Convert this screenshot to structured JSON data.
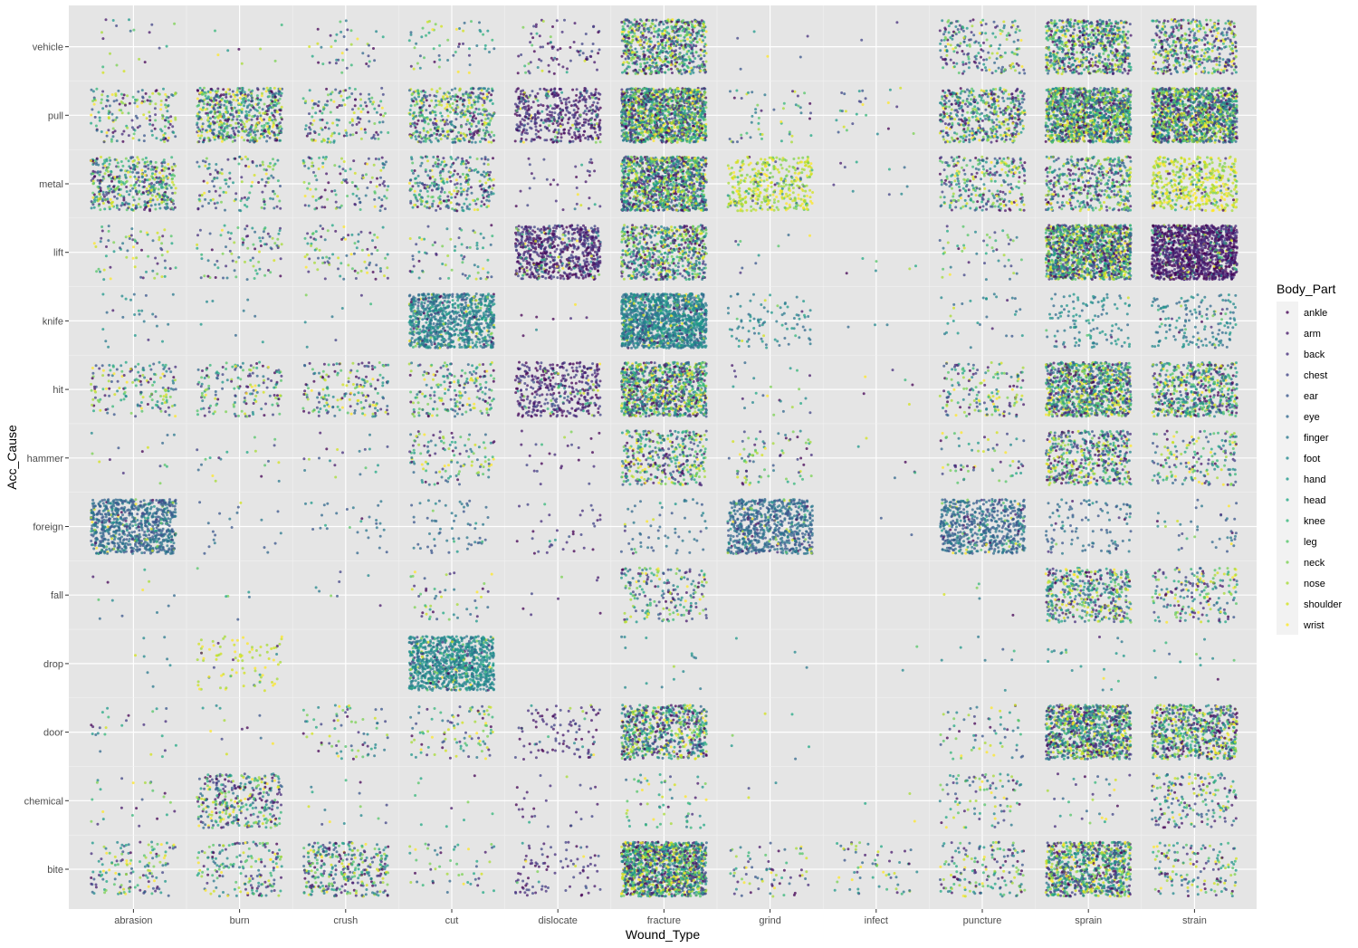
{
  "chart_data": {
    "type": "scatter",
    "subtype": "jitter",
    "title": "",
    "xlabel": "Wound_Type",
    "ylabel": "Acc_Cause",
    "x_categories": [
      "abrasion",
      "burn",
      "crush",
      "cut",
      "dislocate",
      "fracture",
      "grind",
      "infect",
      "puncture",
      "sprain",
      "strain"
    ],
    "y_categories": [
      "bite",
      "chemical",
      "door",
      "drop",
      "fall",
      "foreign",
      "hammer",
      "hit",
      "knife",
      "lift",
      "metal",
      "pull",
      "vehicle"
    ],
    "grid": true,
    "background": "#e5e5e5",
    "legend": {
      "title": "Body_Part",
      "position": "right",
      "entries": [
        "ankle",
        "arm",
        "back",
        "chest",
        "ear",
        "eye",
        "finger",
        "foot",
        "hand",
        "head",
        "knee",
        "leg",
        "neck",
        "nose",
        "shoulder",
        "wrist"
      ],
      "colors": [
        "#440154",
        "#481a6c",
        "#472f7d",
        "#414487",
        "#39568c",
        "#31688e",
        "#2a788e",
        "#23888e",
        "#1f988b",
        "#22a884",
        "#35b779",
        "#54c568",
        "#7ad151",
        "#a5db36",
        "#d2e21b",
        "#fde725"
      ]
    },
    "cell_counts_approx": {
      "vehicle": {
        "abrasion": 20,
        "burn": 8,
        "crush": 40,
        "cut": 55,
        "dislocate": 80,
        "fracture": 700,
        "grind": 6,
        "infect": 2,
        "puncture": 200,
        "sprain": 700,
        "strain": 450
      },
      "pull": {
        "abrasion": 180,
        "burn": 600,
        "crush": 150,
        "cut": 450,
        "dislocate": 450,
        "fracture": 1400,
        "grind": 50,
        "infect": 25,
        "puncture": 500,
        "sprain": 1400,
        "strain": 1400
      },
      "metal": {
        "abrasion": 450,
        "burn": 130,
        "crush": 120,
        "cut": 300,
        "dislocate": 35,
        "fracture": 1200,
        "grind": 400,
        "infect": 10,
        "puncture": 300,
        "sprain": 450,
        "strain": 500
      },
      "lift": {
        "abrasion": 70,
        "burn": 90,
        "crush": 90,
        "cut": 70,
        "dislocate": 700,
        "fracture": 700,
        "grind": 10,
        "infect": 6,
        "puncture": 50,
        "sprain": 1400,
        "strain": 1400
      },
      "knife": {
        "abrasion": 25,
        "burn": 8,
        "crush": 8,
        "cut": 900,
        "dislocate": 8,
        "fracture": 1400,
        "grind": 90,
        "infect": 3,
        "puncture": 30,
        "sprain": 120,
        "strain": 160
      },
      "hit": {
        "abrasion": 160,
        "burn": 160,
        "crush": 180,
        "cut": 200,
        "dislocate": 400,
        "fracture": 1000,
        "grind": 25,
        "infect": 6,
        "puncture": 160,
        "sprain": 1000,
        "strain": 600
      },
      "hammer": {
        "abrasion": 15,
        "burn": 20,
        "crush": 20,
        "cut": 120,
        "dislocate": 25,
        "fracture": 400,
        "grind": 80,
        "infect": 6,
        "puncture": 60,
        "sprain": 500,
        "strain": 180
      },
      "foreign": {
        "abrasion": 800,
        "burn": 20,
        "crush": 30,
        "cut": 60,
        "dislocate": 35,
        "fracture": 60,
        "grind": 700,
        "infect": 2,
        "puncture": 600,
        "sprain": 110,
        "strain": 40
      },
      "fall": {
        "abrasion": 12,
        "burn": 6,
        "crush": 8,
        "cut": 50,
        "dislocate": 8,
        "fracture": 200,
        "grind": 0,
        "infect": 0,
        "puncture": 5,
        "sprain": 450,
        "strain": 200
      },
      "drop": {
        "abrasion": 8,
        "burn": 90,
        "crush": 0,
        "cut": 1000,
        "dislocate": 0,
        "fracture": 15,
        "grind": 3,
        "infect": 2,
        "puncture": 8,
        "sprain": 20,
        "strain": 12
      },
      "door": {
        "abrasion": 25,
        "burn": 12,
        "crush": 70,
        "cut": 100,
        "dislocate": 100,
        "fracture": 700,
        "grind": 6,
        "infect": 0,
        "puncture": 60,
        "sprain": 1000,
        "strain": 700
      },
      "chemical": {
        "abrasion": 25,
        "burn": 350,
        "crush": 15,
        "cut": 10,
        "dislocate": 25,
        "fracture": 60,
        "grind": 3,
        "infect": 3,
        "puncture": 90,
        "sprain": 30,
        "strain": 180
      },
      "bite": {
        "abrasion": 140,
        "burn": 180,
        "crush": 350,
        "cut": 50,
        "dislocate": 90,
        "fracture": 1400,
        "grind": 70,
        "infect": 60,
        "puncture": 160,
        "sprain": 900,
        "strain": 150
      }
    }
  }
}
